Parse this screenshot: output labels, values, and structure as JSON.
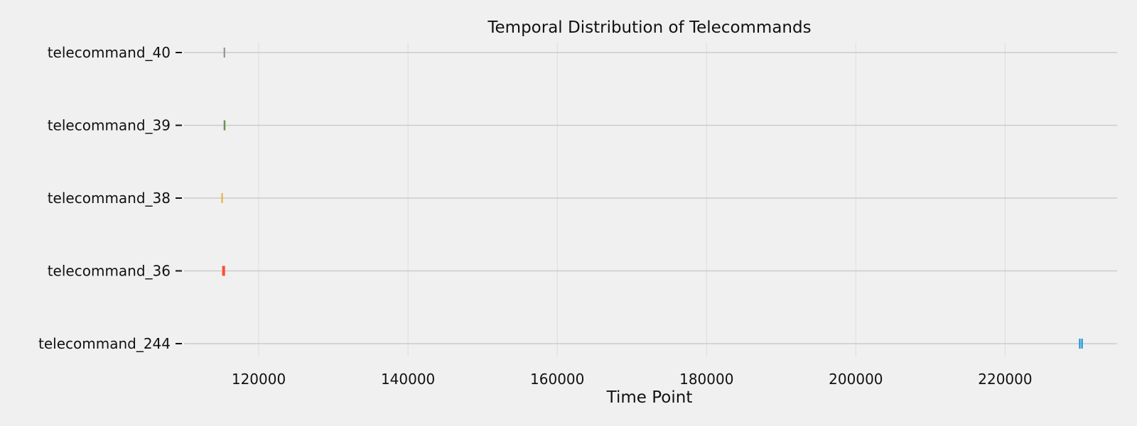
{
  "chart_data": {
    "type": "scatter",
    "title": "Temporal Distribution of Telecommands",
    "xlabel": "Time Point",
    "ylabel": "",
    "xlim": [
      110000,
      235000
    ],
    "xticks": [
      120000,
      140000,
      160000,
      180000,
      200000,
      220000
    ],
    "categories": [
      "telecommand_244",
      "telecommand_36",
      "telecommand_38",
      "telecommand_39",
      "telecommand_40"
    ],
    "grid": true,
    "series": [
      {
        "category": "telecommand_244",
        "color": "#008fd5",
        "x": [
          230000,
          230300
        ]
      },
      {
        "category": "telecommand_36",
        "color": "#fc4f30",
        "x": [
          115200,
          115300,
          115350,
          115400
        ]
      },
      {
        "category": "telecommand_38",
        "color": "#e5ae38",
        "x": [
          115100
        ]
      },
      {
        "category": "telecommand_39",
        "color": "#6d904f",
        "x": [
          115400,
          115450
        ]
      },
      {
        "category": "telecommand_40",
        "color": "#8b8b8b",
        "x": [
          115400
        ]
      }
    ]
  }
}
